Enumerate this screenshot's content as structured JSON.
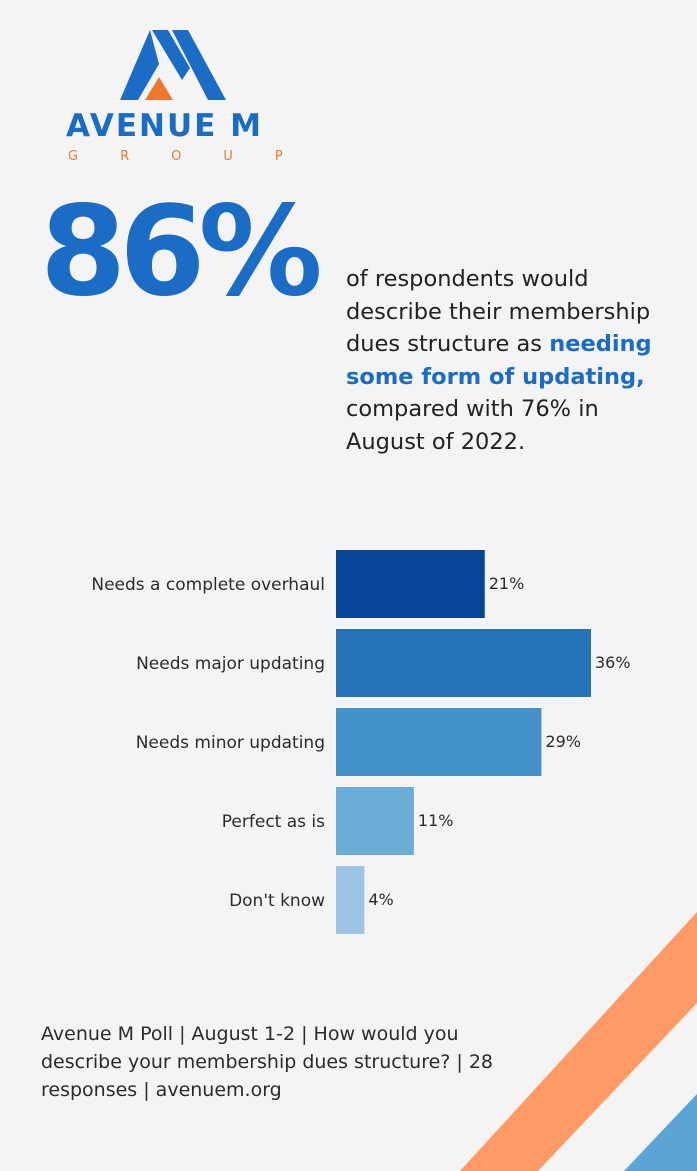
{
  "brand": {
    "name": "AVENUE M",
    "sub": "GROUP",
    "colors": {
      "blue": "#1a6cc4",
      "orange": "#f0772f",
      "light_orange": "#ff9966"
    }
  },
  "headline": {
    "stat": "86%",
    "text_before": "of respondents would describe their membership dues structure as ",
    "highlight": "needing some form of updating,",
    "text_after": " compared with 76% in August of 2022."
  },
  "chart_data": {
    "type": "bar",
    "orientation": "horizontal",
    "categories": [
      "Needs a complete overhaul",
      "Needs major updating",
      "Needs minor updating",
      "Perfect as is",
      "Don't know"
    ],
    "values": [
      21,
      36,
      29,
      11,
      4
    ],
    "value_labels": [
      "21%",
      "36%",
      "29%",
      "11%",
      "4%"
    ],
    "colors": [
      "#064595",
      "#2375b7",
      "#4392c8",
      "#6aaed8",
      "#9dc5e3"
    ],
    "xlim": [
      0,
      36
    ],
    "title": "",
    "xlabel": "",
    "ylabel": "",
    "grid": false,
    "legend": "none"
  },
  "footer": {
    "text": "Avenue M Poll | August 1-2 | How would you describe your membership dues structure? | 28 responses | avenuem.org"
  }
}
